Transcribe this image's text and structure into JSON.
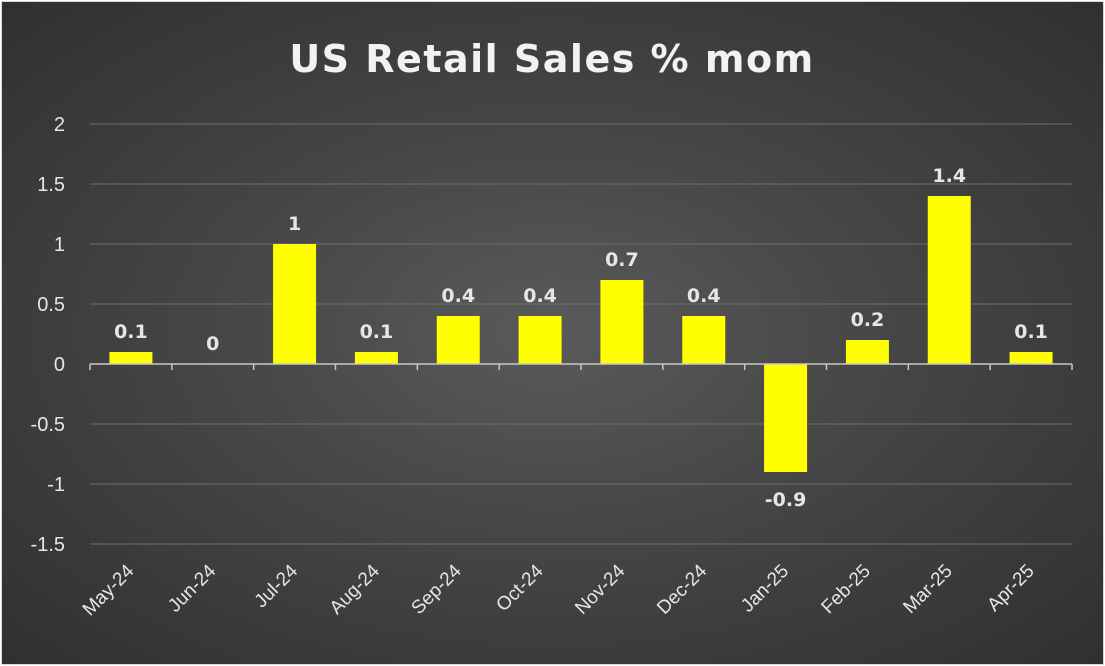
{
  "chart_data": {
    "type": "bar",
    "title": "US Retail Sales % mom",
    "categories": [
      "May-24",
      "Jun-24",
      "Jul-24",
      "Aug-24",
      "Sep-24",
      "Oct-24",
      "Nov-24",
      "Dec-24",
      "Jan-25",
      "Feb-25",
      "Mar-25",
      "Apr-25"
    ],
    "values": [
      0.1,
      0,
      1,
      0.1,
      0.4,
      0.4,
      0.7,
      0.4,
      -0.9,
      0.2,
      1.4,
      0.1
    ],
    "data_labels": [
      "0.1",
      "0",
      "1",
      "0.1",
      "0.4",
      "0.4",
      "0.7",
      "0.4",
      "-0.9",
      "0.2",
      "1.4",
      "0.1"
    ],
    "yticks": [
      2,
      1.5,
      1,
      0.5,
      0,
      -0.5,
      -1,
      -1.5
    ],
    "ytick_labels": [
      "2",
      "1.5",
      "1",
      "0.5",
      "0",
      "-0.5",
      "-1",
      "-1.5"
    ],
    "ylim": [
      -1.5,
      2
    ],
    "xlabel": "",
    "ylabel": "",
    "grid": true,
    "legend": "none",
    "colors": {
      "bar": "#ffff00",
      "background": "#404040",
      "text": "#e6e6e6"
    }
  }
}
